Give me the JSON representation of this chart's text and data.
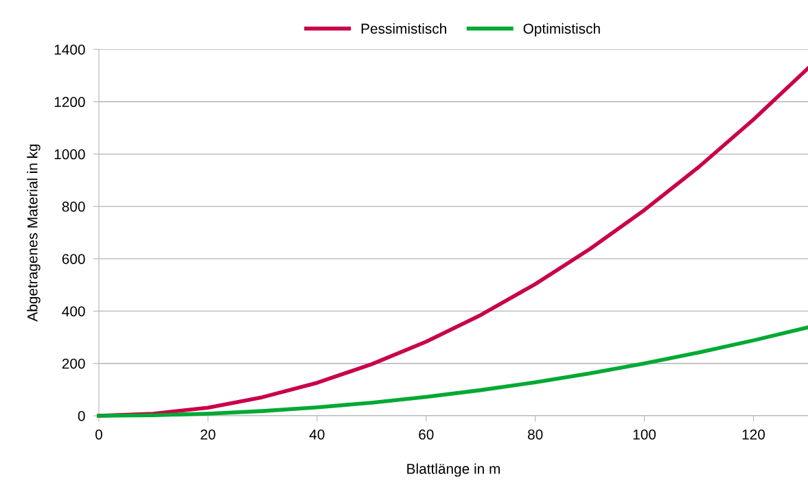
{
  "chart_data": {
    "type": "line",
    "xlabel": "Blattlänge in m",
    "ylabel": "Abgetragenes Material in kg",
    "x": [
      0,
      10,
      20,
      30,
      40,
      50,
      60,
      70,
      80,
      90,
      100,
      110,
      120,
      130
    ],
    "series": [
      {
        "name": "Pessimistisch",
        "color": "#c9004a",
        "values": [
          0,
          8,
          31,
          71,
          126,
          197,
          283,
          385,
          503,
          637,
          786,
          951,
          1132,
          1328
        ]
      },
      {
        "name": "Optimistisch",
        "color": "#00a933",
        "values": [
          0,
          2,
          8,
          18,
          32,
          50,
          72,
          98,
          128,
          162,
          200,
          242,
          288,
          338
        ]
      }
    ],
    "xlim": [
      0,
      130
    ],
    "xticks": [
      0,
      20,
      40,
      60,
      80,
      100,
      120
    ],
    "ylim": [
      0,
      1400
    ],
    "yticks": [
      0,
      200,
      400,
      600,
      800,
      1000,
      1200,
      1400
    ],
    "grid": "y",
    "legend": "top",
    "marker": "none",
    "line_style": "solid"
  }
}
